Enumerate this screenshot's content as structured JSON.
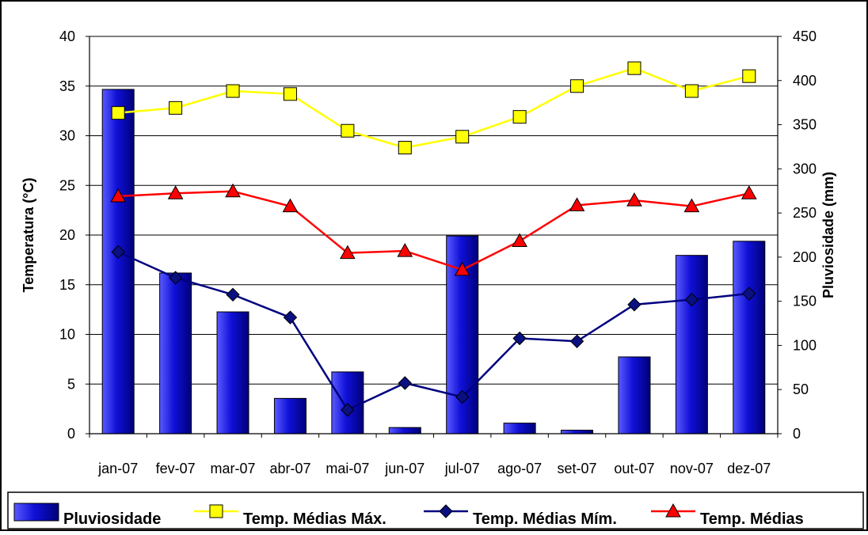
{
  "chart_data": {
    "type": "bar+line",
    "categories": [
      "jan-07",
      "fev-07",
      "mar-07",
      "abr-07",
      "mai-07",
      "jun-07",
      "jul-07",
      "ago-07",
      "set-07",
      "out-07",
      "nov-07",
      "dez-07"
    ],
    "left_axis": {
      "label": "Temperatura (°C)",
      "ylim": [
        0,
        40
      ],
      "ticks": [
        "0",
        "5",
        "10",
        "15",
        "20",
        "25",
        "30",
        "35",
        "40"
      ]
    },
    "right_axis": {
      "label": "Pluviosidade (mm)",
      "ylim": [
        0,
        450
      ],
      "ticks": [
        "0",
        "50",
        "100",
        "150",
        "200",
        "250",
        "300",
        "350",
        "400",
        "450"
      ]
    },
    "grid": true,
    "legend_position": "bottom",
    "series": [
      {
        "name": "Pluviosidade",
        "type": "bar",
        "axis": "right",
        "color": "#0a0acc",
        "values": [
          390,
          182,
          138,
          40,
          70,
          7,
          224,
          12,
          4,
          87,
          202,
          218
        ]
      },
      {
        "name": "Temp. Médias Máx.",
        "type": "line",
        "axis": "left",
        "color": "#ffff00",
        "marker": "square",
        "values": [
          32.3,
          32.8,
          34.5,
          34.2,
          30.5,
          28.8,
          29.9,
          31.9,
          35.0,
          36.8,
          34.5,
          36.0
        ]
      },
      {
        "name": "Temp. Médias Mím.",
        "type": "line",
        "axis": "left",
        "color": "#000080",
        "marker": "diamond",
        "values": [
          18.3,
          15.7,
          14.0,
          11.7,
          2.4,
          5.1,
          3.7,
          9.6,
          9.3,
          13.0,
          13.5,
          14.1
        ]
      },
      {
        "name": "Temp. Médias",
        "type": "line",
        "axis": "left",
        "color": "#ff0000",
        "marker": "triangle",
        "values": [
          23.9,
          24.2,
          24.4,
          22.9,
          18.2,
          18.4,
          16.5,
          19.4,
          23.0,
          23.5,
          22.9,
          24.2
        ]
      }
    ]
  }
}
